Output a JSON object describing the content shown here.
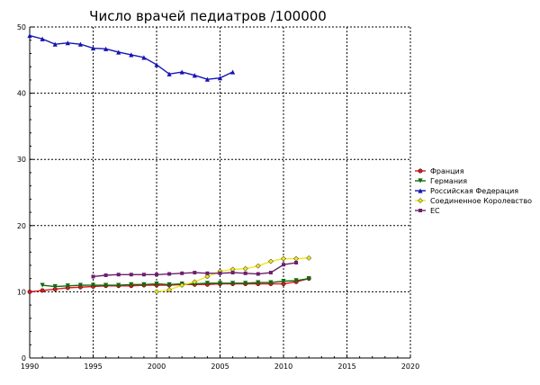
{
  "chart_data": {
    "type": "line",
    "title": "Число врачей педиатров /100000",
    "xlabel": "",
    "ylabel": "",
    "xlim": [
      1990,
      2020
    ],
    "ylim": [
      0,
      50
    ],
    "xticks": [
      1990,
      1995,
      2000,
      2005,
      2010,
      2015,
      2020
    ],
    "yticks": [
      0,
      10,
      20,
      30,
      40,
      50
    ],
    "grid": true,
    "legend_position": "right",
    "series": [
      {
        "name": "Франция",
        "color": "#e8141b",
        "marker": "circle",
        "x": [
          1990,
          1991,
          1992,
          1993,
          1994,
          1995,
          1996,
          1997,
          1998,
          1999,
          2000,
          2001,
          2002,
          2003,
          2004,
          2005,
          2006,
          2007,
          2008,
          2009,
          2010,
          2011,
          2012
        ],
        "y": [
          10.0,
          10.2,
          10.4,
          10.6,
          10.7,
          10.8,
          10.9,
          10.9,
          10.9,
          11.0,
          11.0,
          11.0,
          11.1,
          11.1,
          11.1,
          11.2,
          11.2,
          11.2,
          11.2,
          11.2,
          11.2,
          11.5,
          12.0
        ]
      },
      {
        "name": "Германия",
        "color": "#0f6b0f",
        "marker": "triangle-down",
        "x": [
          1991,
          1992,
          1993,
          1994,
          1995,
          1996,
          1997,
          1998,
          1999,
          2000,
          2001,
          2002,
          2003,
          2004,
          2005,
          2006,
          2007,
          2008,
          2009,
          2010,
          2011,
          2012
        ],
        "y": [
          11.0,
          10.8,
          10.9,
          11.0,
          11.0,
          11.0,
          11.0,
          11.1,
          11.1,
          11.2,
          11.1,
          11.2,
          11.2,
          11.3,
          11.3,
          11.3,
          11.3,
          11.4,
          11.4,
          11.6,
          11.7,
          12.0
        ]
      },
      {
        "name": "Российская Федерация",
        "color": "#1414b4",
        "marker": "triangle-up",
        "x": [
          1990,
          1991,
          1992,
          1993,
          1994,
          1995,
          1996,
          1997,
          1998,
          1999,
          2000,
          2001,
          2002,
          2003,
          2004,
          2005,
          2006
        ],
        "y": [
          48.7,
          48.2,
          47.4,
          47.6,
          47.4,
          46.8,
          46.7,
          46.2,
          45.8,
          45.4,
          44.3,
          42.9,
          43.2,
          42.7,
          42.1,
          42.3,
          43.2
        ]
      },
      {
        "name": "Соединенное Королевство",
        "color": "#f0e61e",
        "marker": "diamond",
        "x": [
          2000,
          2001,
          2002,
          2003,
          2004,
          2005,
          2006,
          2007,
          2008,
          2009,
          2010,
          2011,
          2012
        ],
        "y": [
          10.0,
          10.3,
          11.0,
          11.5,
          12.3,
          13.1,
          13.4,
          13.5,
          13.9,
          14.6,
          15.0,
          15.0,
          15.1
        ]
      },
      {
        "name": "ЕС",
        "color": "#6c1f6c",
        "marker": "square",
        "x": [
          1995,
          1996,
          1997,
          1998,
          1999,
          2000,
          2001,
          2002,
          2003,
          2004,
          2005,
          2006,
          2007,
          2008,
          2009,
          2010,
          2011
        ],
        "y": [
          12.3,
          12.5,
          12.6,
          12.6,
          12.6,
          12.6,
          12.7,
          12.8,
          12.9,
          12.8,
          12.8,
          12.9,
          12.8,
          12.7,
          12.9,
          14.1,
          14.4
        ]
      }
    ]
  }
}
